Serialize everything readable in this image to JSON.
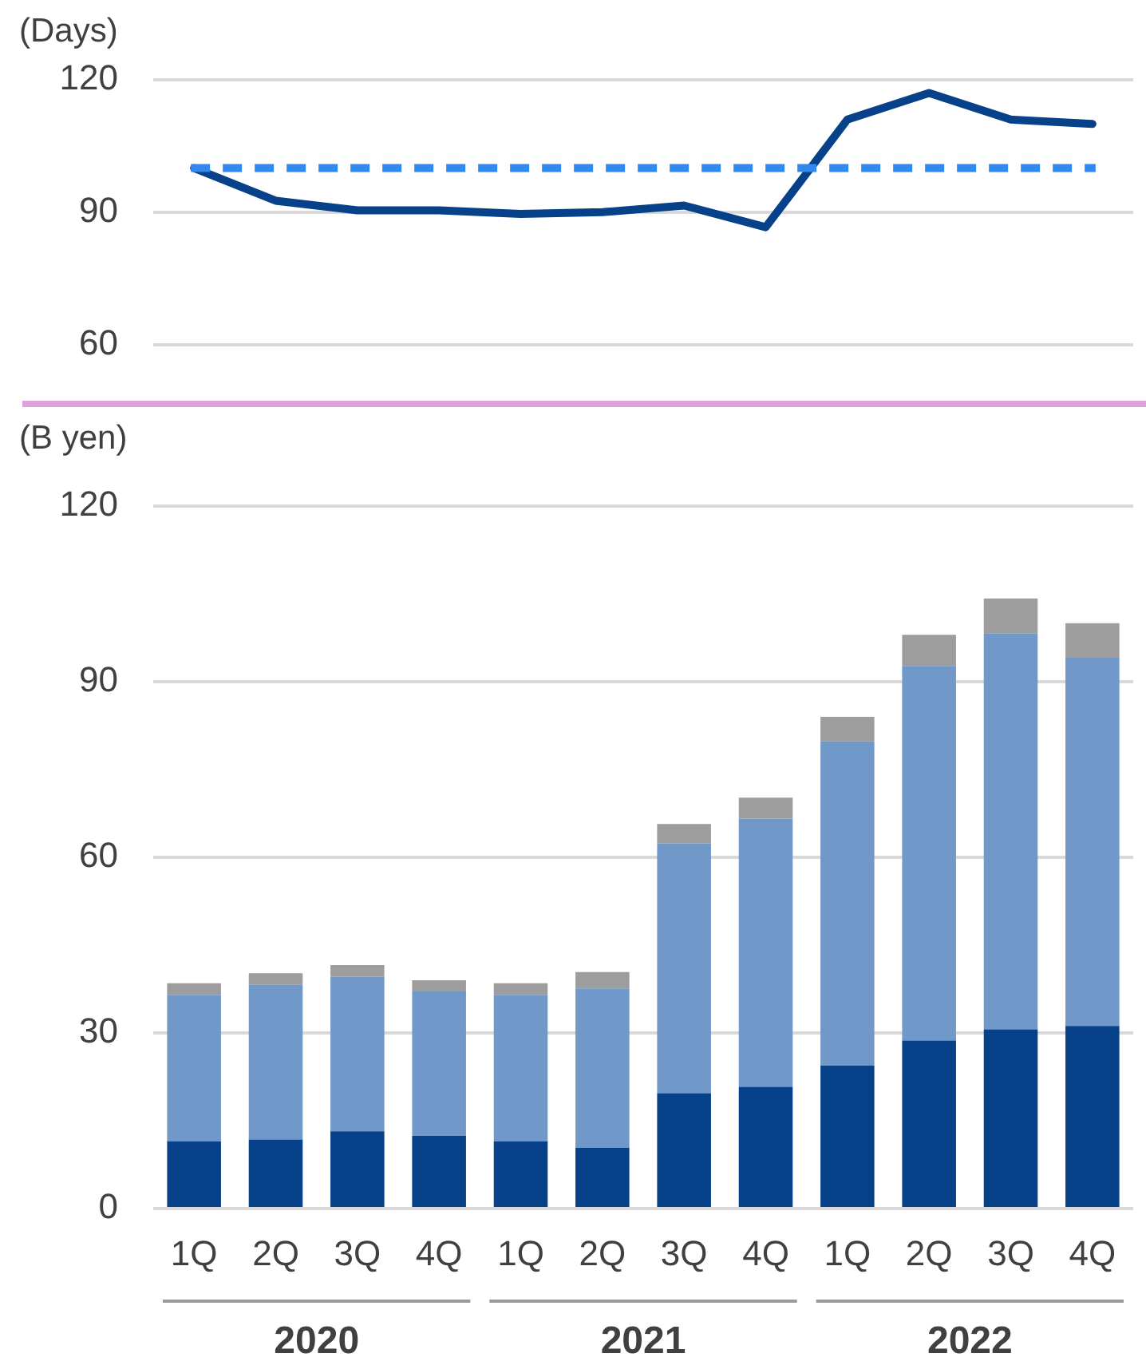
{
  "chart_data": [
    {
      "type": "line",
      "ylabel": "(Days)",
      "categories": [
        null,
        null,
        null,
        null,
        null,
        null,
        null,
        null,
        null,
        null,
        null,
        null
      ],
      "series": [
        {
          "color": "#06418a",
          "values": [
            100,
            92.6,
            90.4,
            90.4,
            89.6,
            90,
            91.5,
            86.6,
            111,
            117,
            111,
            110
          ]
        }
      ],
      "ref_lines": [
        {
          "axis": "y",
          "value": 100,
          "color": "#3388ee",
          "line_style": "dashed"
        }
      ],
      "ylim": [
        60,
        120
      ],
      "yticks": [
        60,
        90,
        120
      ],
      "grid": "y",
      "tick_labels": "y",
      "marker": "none"
    },
    {
      "type": "bar",
      "stacked": true,
      "ylabel": "(B yen)",
      "categories": [
        "1Q",
        "2Q",
        "3Q",
        "4Q",
        "1Q",
        "2Q",
        "3Q",
        "4Q",
        "1Q",
        "2Q",
        "3Q",
        "4Q"
      ],
      "series": [
        {
          "color": "#06418a",
          "values": [
            11.5,
            11.8,
            13.2,
            12.4,
            11.5,
            10.4,
            19.7,
            20.8,
            24.4,
            28.7,
            30.6,
            31.2
          ]
        },
        {
          "color": "#7098c8",
          "values": [
            25,
            26.4,
            26.4,
            24.7,
            25,
            27.2,
            42.7,
            45.8,
            55.4,
            64,
            67.7,
            62.9
          ]
        },
        {
          "color": "#9d9d9d",
          "values": [
            2,
            2,
            2,
            1.9,
            2,
            2.8,
            3.3,
            3.6,
            4.2,
            5.3,
            5.9,
            5.9
          ]
        }
      ],
      "annotations": [
        "2020",
        "2021",
        "2022"
      ],
      "ylim": [
        0,
        120
      ],
      "yticks": [
        0,
        30,
        60,
        90,
        120
      ],
      "grid": "y"
    }
  ]
}
